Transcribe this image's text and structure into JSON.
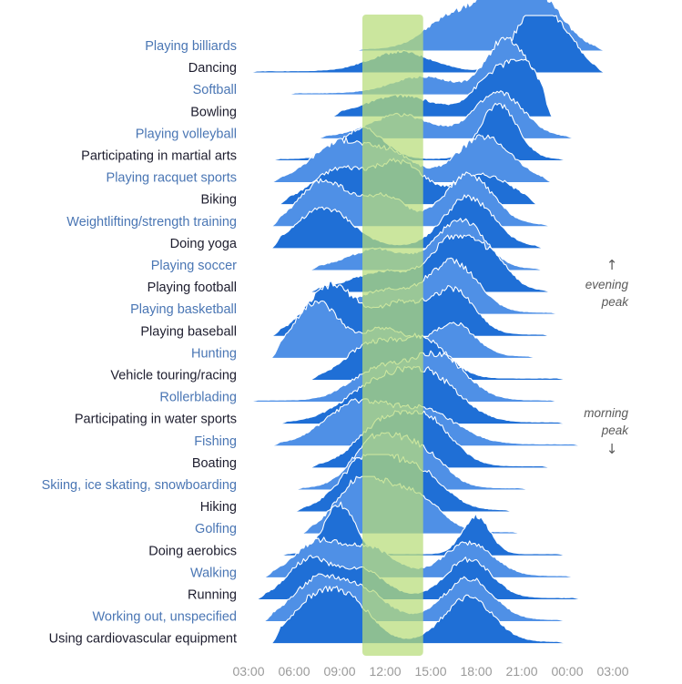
{
  "chart_data": {
    "type": "ridgeline",
    "title": "",
    "xlabel": "",
    "ylabel": "",
    "x_ticks": [
      "03:00",
      "06:00",
      "09:00",
      "12:00",
      "15:00",
      "18:00",
      "21:00",
      "00:00",
      "03:00"
    ],
    "x_range_hours": [
      3,
      27
    ],
    "highlight_band_hours": [
      10.5,
      14.5
    ],
    "colors": {
      "label_light": "#4a76b4",
      "label_dark": "#1d1d2e",
      "fill_dark": "#1f6fd6",
      "fill_light": "#4f90e6",
      "band": "#bde07c"
    },
    "annotations": {
      "evening": {
        "arrow": "↑",
        "lines": [
          "evening",
          "peak"
        ]
      },
      "morning": {
        "lines": [
          "morning",
          "peak"
        ],
        "arrow": "↓"
      }
    },
    "activities": [
      {
        "label": "Playing billiards",
        "tone": "light",
        "peaks": [
          [
            16.5,
            0.6,
            1.8
          ],
          [
            20,
            1.0,
            1.6
          ],
          [
            22.5,
            0.7,
            1.5
          ]
        ],
        "range": [
          10,
          26.5
        ]
      },
      {
        "label": "Dancing",
        "tone": "dark",
        "peaks": [
          [
            13,
            0.35,
            2.0
          ],
          [
            21.5,
            0.9,
            1.2
          ],
          [
            23.5,
            0.7,
            1.2
          ]
        ],
        "range": [
          3,
          26.5
        ]
      },
      {
        "label": "Softball",
        "tone": "light",
        "peaks": [
          [
            14.5,
            0.3,
            2.0
          ],
          [
            20,
            1.0,
            1.3
          ]
        ],
        "range": [
          5.5,
          22.5
        ]
      },
      {
        "label": "Bowling",
        "tone": "dark",
        "peaks": [
          [
            13,
            0.35,
            2.2
          ],
          [
            19.5,
            0.8,
            1.5
          ],
          [
            21.5,
            0.6,
            1.0
          ]
        ],
        "range": [
          8.5,
          23
        ]
      },
      {
        "label": "Playing volleyball",
        "tone": "light",
        "peaks": [
          [
            13,
            0.4,
            2.0
          ],
          [
            19.5,
            0.8,
            1.6
          ]
        ],
        "range": [
          7.5,
          24.5
        ]
      },
      {
        "label": "Participating in martial arts",
        "tone": "dark",
        "peaks": [
          [
            10.5,
            0.55,
            1.4
          ],
          [
            19.5,
            1.0,
            1.2
          ]
        ],
        "range": [
          4.5,
          24
        ]
      },
      {
        "label": "Playing racquet sports",
        "tone": "light",
        "peaks": [
          [
            9,
            0.7,
            1.8
          ],
          [
            12.5,
            0.45,
            1.5
          ],
          [
            18.5,
            0.8,
            1.8
          ]
        ],
        "range": [
          4.5,
          23
        ]
      },
      {
        "label": "Biking",
        "tone": "dark",
        "peaks": [
          [
            9,
            0.6,
            1.8
          ],
          [
            13,
            0.7,
            1.6
          ],
          [
            18.5,
            0.5,
            1.8
          ]
        ],
        "range": [
          5,
          22
        ]
      },
      {
        "label": "Weightlifting/strength training",
        "tone": "light",
        "peaks": [
          [
            8,
            0.8,
            1.6
          ],
          [
            12,
            0.5,
            1.4
          ],
          [
            17.5,
            0.9,
            1.6
          ]
        ],
        "range": [
          4.5,
          23
        ]
      },
      {
        "label": "Doing yoga",
        "tone": "dark",
        "peaks": [
          [
            8,
            0.7,
            1.8
          ],
          [
            17.5,
            0.9,
            1.6
          ]
        ],
        "range": [
          4.5,
          22.5
        ]
      },
      {
        "label": "Playing soccer",
        "tone": "light",
        "peaks": [
          [
            11.5,
            0.35,
            2.0
          ],
          [
            17,
            0.9,
            1.5
          ]
        ],
        "range": [
          7,
          22.5
        ]
      },
      {
        "label": "Playing football",
        "tone": "dark",
        "peaks": [
          [
            12,
            0.35,
            2.2
          ],
          [
            16.5,
            0.9,
            1.4
          ],
          [
            19,
            0.55,
            1.2
          ]
        ],
        "range": [
          7,
          23
        ]
      },
      {
        "label": "Playing basketball",
        "tone": "light",
        "peaks": [
          [
            12,
            0.4,
            2.0
          ],
          [
            16.5,
            0.9,
            1.6
          ]
        ],
        "range": [
          6.5,
          23.5
        ]
      },
      {
        "label": "Playing baseball",
        "tone": "dark",
        "peaks": [
          [
            8.5,
            0.9,
            1.6
          ],
          [
            13,
            0.55,
            1.5
          ],
          [
            16.5,
            0.8,
            1.4
          ]
        ],
        "range": [
          4.5,
          23
        ]
      },
      {
        "label": "Hunting",
        "tone": "light",
        "peaks": [
          [
            7.5,
            1.0,
            1.5
          ],
          [
            12,
            0.5,
            1.5
          ],
          [
            16.5,
            0.6,
            1.4
          ]
        ],
        "range": [
          4.5,
          22
        ]
      },
      {
        "label": "Vehicle touring/racing",
        "tone": "dark",
        "peaks": [
          [
            11,
            0.6,
            1.6
          ],
          [
            14.5,
            0.7,
            1.6
          ]
        ],
        "range": [
          7,
          24
        ]
      },
      {
        "label": "Rollerblading",
        "tone": "light",
        "peaks": [
          [
            11.5,
            0.55,
            1.8
          ],
          [
            15.5,
            0.8,
            1.8
          ]
        ],
        "range": [
          3,
          23.5
        ]
      },
      {
        "label": "Participating in water sports",
        "tone": "dark",
        "peaks": [
          [
            11.5,
            0.65,
            2.2
          ],
          [
            15,
            0.75,
            2.0
          ]
        ],
        "range": [
          5,
          24
        ]
      },
      {
        "label": "Fishing",
        "tone": "light",
        "peaks": [
          [
            10,
            0.7,
            2.0
          ],
          [
            14.5,
            0.6,
            2.2
          ]
        ],
        "range": [
          4.5,
          25
        ]
      },
      {
        "label": "Boating",
        "tone": "dark",
        "peaks": [
          [
            12,
            0.8,
            1.8
          ],
          [
            15,
            0.7,
            1.6
          ]
        ],
        "range": [
          7,
          23
        ]
      },
      {
        "label": "Skiing, ice skating, snowboarding",
        "tone": "light",
        "peaks": [
          [
            11.5,
            0.9,
            1.6
          ],
          [
            14.5,
            0.6,
            1.5
          ]
        ],
        "range": [
          6,
          21.5
        ]
      },
      {
        "label": "Hiking",
        "tone": "dark",
        "peaks": [
          [
            11,
            1.0,
            1.8
          ],
          [
            14.5,
            0.6,
            1.6
          ]
        ],
        "range": [
          6,
          20.5
        ]
      },
      {
        "label": "Golfing",
        "tone": "light",
        "peaks": [
          [
            10.5,
            1.0,
            1.6
          ],
          [
            14,
            0.65,
            1.6
          ]
        ],
        "range": [
          6.5,
          21
        ]
      },
      {
        "label": "Doing aerobics",
        "tone": "dark",
        "peaks": [
          [
            9,
            0.9,
            1.0
          ],
          [
            18,
            0.7,
            0.9
          ]
        ],
        "range": [
          5,
          24
        ]
      },
      {
        "label": "Walking",
        "tone": "light",
        "peaks": [
          [
            7.5,
            0.6,
            1.5
          ],
          [
            11,
            0.5,
            1.6
          ],
          [
            17.5,
            0.6,
            1.6
          ]
        ],
        "range": [
          4,
          24.5
        ]
      },
      {
        "label": "Running",
        "tone": "dark",
        "peaks": [
          [
            7,
            0.7,
            1.4
          ],
          [
            10.5,
            0.5,
            1.5
          ],
          [
            17.5,
            0.7,
            1.5
          ]
        ],
        "range": [
          3.5,
          25
        ]
      },
      {
        "label": "Working out, unspecified",
        "tone": "light",
        "peaks": [
          [
            7.5,
            0.7,
            1.6
          ],
          [
            10.5,
            0.5,
            1.6
          ],
          [
            17.5,
            0.75,
            1.6
          ]
        ],
        "range": [
          4,
          24
        ]
      },
      {
        "label": "Using cardiovascular equipment",
        "tone": "dark",
        "peaks": [
          [
            7.5,
            0.8,
            1.6
          ],
          [
            10,
            0.55,
            1.4
          ],
          [
            17.5,
            0.8,
            1.6
          ]
        ],
        "range": [
          4.5,
          24
        ]
      }
    ]
  }
}
